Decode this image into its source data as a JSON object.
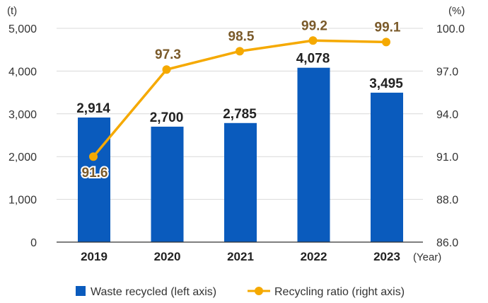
{
  "chart_data": {
    "type": "bar",
    "categories": [
      "2019",
      "2020",
      "2021",
      "2022",
      "2023"
    ],
    "xlabel": "(Year)",
    "left_axis": {
      "unit": "(t)",
      "ylim": [
        0,
        5000
      ],
      "ticks": [
        "0",
        "1,000",
        "2,000",
        "3,000",
        "4,000",
        "5,000"
      ]
    },
    "right_axis": {
      "unit": "(%)",
      "ylim": [
        86.0,
        100.0
      ],
      "ticks": [
        "86.0",
        "88.0",
        "91.0",
        "94.0",
        "97.0",
        "100.0"
      ]
    },
    "series": [
      {
        "name": "Waste recycled (left axis)",
        "type": "bar",
        "axis": "left",
        "color": "#0a5bbd",
        "values": [
          2914,
          2700,
          2785,
          4078,
          3495
        ],
        "labels": [
          "2,914",
          "2,700",
          "2,785",
          "4,078",
          "3,495"
        ]
      },
      {
        "name": "Recycling ratio (right axis)",
        "type": "line",
        "axis": "right",
        "color": "#f5a900",
        "label_color": "#7a5a2a",
        "values": [
          91.6,
          97.3,
          98.5,
          99.2,
          99.1
        ],
        "labels": [
          "91.6",
          "97.3",
          "98.5",
          "99.2",
          "99.1"
        ]
      }
    ],
    "grid": true,
    "legend_position": "bottom"
  }
}
